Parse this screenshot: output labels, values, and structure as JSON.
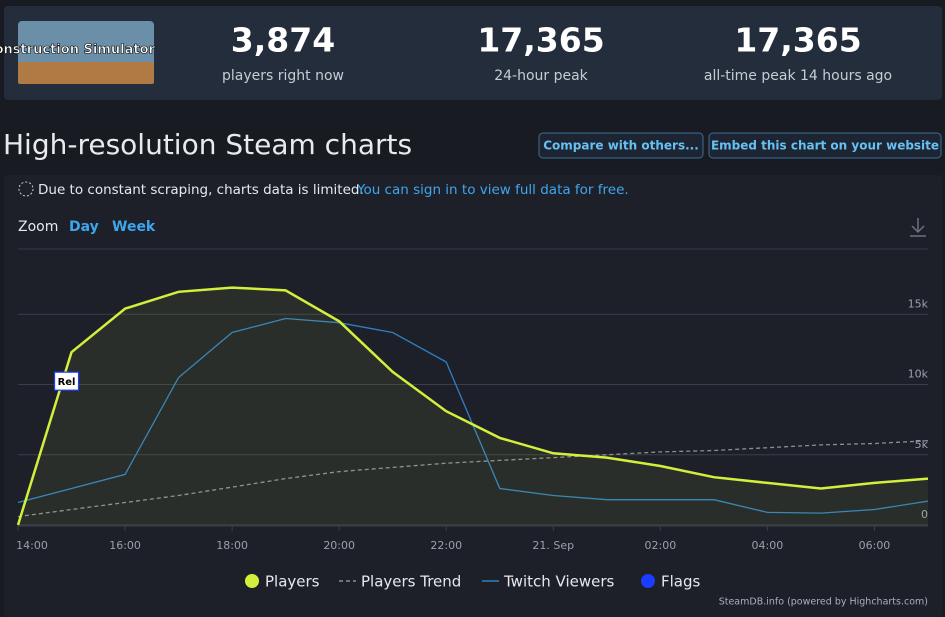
{
  "header": {
    "logo_text": "Construction Simulator",
    "stats": [
      {
        "value": "3,874",
        "label": "players right now"
      },
      {
        "value": "17,365",
        "label": "24-hour peak"
      },
      {
        "value": "17,365",
        "label": "all-time peak 14 hours ago"
      }
    ]
  },
  "page_title": "High-resolution Steam charts",
  "buttons": [
    "Compare with others...",
    "Embed this chart on your website"
  ],
  "notice": {
    "text": "Due to constant scraping, charts data is limited.",
    "link": "You can sign in to view full data for free."
  },
  "zoom": {
    "label": "Zoom",
    "options": [
      "Day",
      "Week"
    ]
  },
  "chart_data": {
    "type": "line",
    "categories": [
      "14:00",
      null,
      "16:00",
      null,
      "18:00",
      null,
      "20:00",
      null,
      "22:00",
      null,
      "21. Sep",
      null,
      "02:00",
      null,
      "04:00",
      null,
      "06:00",
      null
    ],
    "ylim": [
      0,
      20000
    ],
    "yticks": [
      0,
      {
        "value": 5000,
        "label": "5k"
      },
      {
        "value": 10000,
        "label": "10k"
      },
      {
        "value": 15000,
        "label": "15k"
      }
    ],
    "grid": true,
    "series": [
      {
        "name": "Players",
        "color": "#d3ef3c",
        "area": true,
        "values": [
          0,
          12300,
          15400,
          16600,
          16900,
          16700,
          14500,
          10900,
          8100,
          6200,
          5100,
          4800,
          4200,
          3400,
          3000,
          2600,
          3000,
          3300
        ]
      },
      {
        "name": "Players Trend",
        "color": "#8a8d93",
        "dashed": true,
        "values": [
          600,
          1100,
          1600,
          2100,
          2700,
          3300,
          3800,
          4100,
          4400,
          4600,
          4800,
          5000,
          5200,
          5300,
          5500,
          5700,
          5800,
          6000
        ]
      },
      {
        "name": "Twitch Viewers",
        "color": "#2f7fc1",
        "values": [
          1600,
          2600,
          3600,
          10500,
          13700,
          14700,
          14400,
          13700,
          11600,
          2600,
          2100,
          1800,
          1800,
          1800,
          900,
          850,
          1100,
          1700
        ]
      },
      {
        "name": "Flags",
        "color": "#1a3cff",
        "labels": [
          null,
          "Rel",
          null,
          null,
          null,
          null,
          null,
          null,
          null,
          null,
          null,
          null,
          null,
          null,
          null,
          null,
          null,
          null
        ]
      }
    ],
    "credit": "SteamDB.info (powered by Highcharts.com)"
  }
}
